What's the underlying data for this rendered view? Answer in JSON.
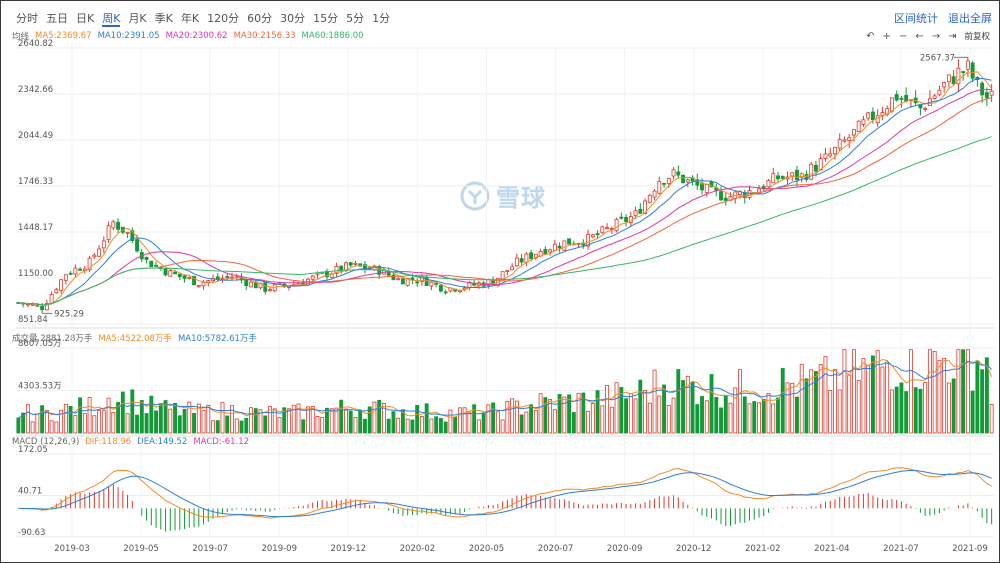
{
  "tabs": [
    {
      "label": "分时",
      "active": false
    },
    {
      "label": "五日",
      "active": false
    },
    {
      "label": "日K",
      "active": false
    },
    {
      "label": "周K",
      "active": true
    },
    {
      "label": "月K",
      "active": false
    },
    {
      "label": "季K",
      "active": false
    },
    {
      "label": "年K",
      "active": false
    },
    {
      "label": "120分",
      "active": false
    },
    {
      "label": "60分",
      "active": false
    },
    {
      "label": "30分",
      "active": false
    },
    {
      "label": "15分",
      "active": false
    },
    {
      "label": "5分",
      "active": false
    },
    {
      "label": "1分",
      "active": false
    }
  ],
  "right_links": {
    "range_stats": "区间统计",
    "exit_fullscreen": "退出全屏"
  },
  "controls": {
    "fuquan": "前复权"
  },
  "watermark": {
    "text": "雪球"
  },
  "price_legend": {
    "title": "均线",
    "ma5": "MA5:2369.67",
    "ma10": "MA10:2391.05",
    "ma20": "MA20:2300.62",
    "ma30": "MA30:2156.33",
    "ma60": "MA60:1886.00"
  },
  "volume_legend": {
    "title": "成交量 2881.28万手",
    "ma5": "MA5:4522.08万手",
    "ma10": "MA10:5782.61万手"
  },
  "macd_legend": {
    "title": "MACD (12,26,9)",
    "dif": "DIF:118.96",
    "dea": "DEA:149.52",
    "macd": "MACD:-61.12"
  },
  "colors": {
    "up": "#e0392b",
    "down": "#139a36",
    "ma5": "#f28c28",
    "ma10": "#2f7fd6",
    "ma20": "#e236b0",
    "ma30": "#f0683c",
    "ma60": "#35b76a",
    "dif": "#f28c28",
    "dea": "#2f7fd6"
  },
  "chart_data": [
    {
      "type": "candlestick",
      "y_ticks": [
        "2640.82",
        "2342.66",
        "2044.49",
        "1746.33",
        "1448.17",
        "1150.00",
        "851.84"
      ],
      "ylim": [
        851.84,
        2640.82
      ],
      "x_ticks": [
        "2019-03",
        "2019-05",
        "2019-07",
        "2019-09",
        "2019-12",
        "2020-02",
        "2020-05",
        "2020-07",
        "2020-09",
        "2020-12",
        "2021-02",
        "2021-04",
        "2021-07",
        "2021-09"
      ],
      "annotations": {
        "max": "2567.37",
        "min": "925.29"
      },
      "anchors": [
        [
          0,
          990
        ],
        [
          5,
          960
        ],
        [
          10,
          1180
        ],
        [
          15,
          1250
        ],
        [
          20,
          1510
        ],
        [
          23,
          1440
        ],
        [
          27,
          1260
        ],
        [
          32,
          1180
        ],
        [
          38,
          1120
        ],
        [
          45,
          1160
        ],
        [
          52,
          1080
        ],
        [
          58,
          1110
        ],
        [
          64,
          1170
        ],
        [
          70,
          1230
        ],
        [
          76,
          1200
        ],
        [
          80,
          1140
        ],
        [
          85,
          1140
        ],
        [
          90,
          1080
        ],
        [
          95,
          1100
        ],
        [
          100,
          1130
        ],
        [
          105,
          1250
        ],
        [
          110,
          1330
        ],
        [
          115,
          1380
        ],
        [
          120,
          1400
        ],
        [
          125,
          1480
        ],
        [
          130,
          1560
        ],
        [
          135,
          1790
        ],
        [
          138,
          1820
        ],
        [
          142,
          1760
        ],
        [
          146,
          1700
        ],
        [
          150,
          1680
        ],
        [
          155,
          1720
        ],
        [
          160,
          1800
        ],
        [
          165,
          1810
        ],
        [
          170,
          1920
        ],
        [
          175,
          2060
        ],
        [
          180,
          2200
        ],
        [
          185,
          2330
        ],
        [
          190,
          2250
        ],
        [
          195,
          2400
        ],
        [
          198,
          2480
        ],
        [
          200,
          2510
        ],
        [
          202,
          2390
        ],
        [
          204,
          2320
        ]
      ]
    },
    {
      "type": "bar",
      "title": "成交量",
      "y_ticks": [
        "8607.05万",
        "4303.53万"
      ],
      "ylim": [
        0,
        8607.05
      ],
      "unit": "万手",
      "last_value": 2881.28
    },
    {
      "type": "bar",
      "title": "MACD (12,26,9)",
      "y_ticks": [
        "172.05",
        "40.71",
        "-90.63"
      ],
      "ylim": [
        -90.63,
        172.05
      ]
    }
  ]
}
